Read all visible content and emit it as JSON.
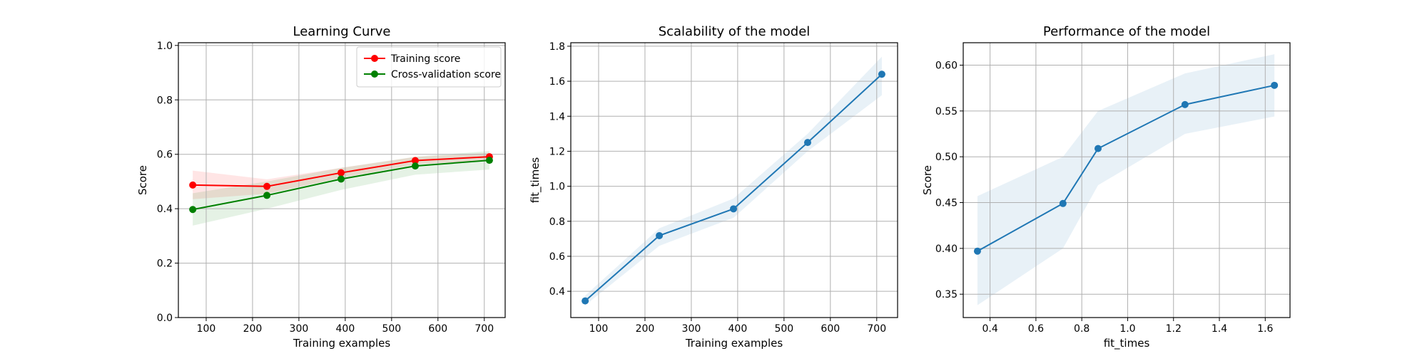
{
  "colors": {
    "training": "#ff0000",
    "cross_validation": "#008000",
    "series": "#1f77b4",
    "band_blue": "#1f77b4"
  },
  "chart_data": [
    {
      "id": "learning",
      "type": "line",
      "title": "Learning Curve",
      "xlabel": "Training examples",
      "ylabel": "Score",
      "xlim": [
        40,
        745
      ],
      "ylim": [
        0.0,
        1.01
      ],
      "xticks": [
        100,
        200,
        300,
        400,
        500,
        600,
        700
      ],
      "yticks": [
        0.0,
        0.2,
        0.4,
        0.6,
        0.8,
        1.0
      ],
      "xtick_labels": [
        "100",
        "200",
        "300",
        "400",
        "500",
        "600",
        "700"
      ],
      "ytick_labels": [
        "0.0",
        "0.2",
        "0.4",
        "0.6",
        "0.8",
        "1.0"
      ],
      "grid": true,
      "legend_position": "top-right",
      "series": [
        {
          "name": "Training score",
          "color": "#ff0000",
          "x": [
            71,
            231,
            391,
            551,
            711
          ],
          "y": [
            0.487,
            0.482,
            0.532,
            0.577,
            0.591
          ],
          "band_lower": [
            0.435,
            0.455,
            0.513,
            0.563,
            0.578
          ],
          "band_upper": [
            0.54,
            0.508,
            0.55,
            0.59,
            0.605
          ]
        },
        {
          "name": "Cross-validation score",
          "color": "#008000",
          "x": [
            71,
            231,
            391,
            551,
            711
          ],
          "y": [
            0.397,
            0.449,
            0.509,
            0.557,
            0.578
          ],
          "band_lower": [
            0.338,
            0.4,
            0.469,
            0.525,
            0.544
          ],
          "band_upper": [
            0.457,
            0.5,
            0.55,
            0.591,
            0.612
          ]
        }
      ]
    },
    {
      "id": "scalability",
      "type": "line",
      "title": "Scalability of the model",
      "xlabel": "Training examples",
      "ylabel": "fit_times",
      "xlim": [
        40,
        745
      ],
      "ylim": [
        0.25,
        1.82
      ],
      "xticks": [
        100,
        200,
        300,
        400,
        500,
        600,
        700
      ],
      "yticks": [
        0.4,
        0.6,
        0.8,
        1.0,
        1.2,
        1.4,
        1.6,
        1.8
      ],
      "xtick_labels": [
        "100",
        "200",
        "300",
        "400",
        "500",
        "600",
        "700"
      ],
      "ytick_labels": [
        "0.4",
        "0.6",
        "0.8",
        "1.0",
        "1.2",
        "1.4",
        "1.6",
        "1.8"
      ],
      "grid": true,
      "series": [
        {
          "color": "#1f77b4",
          "x": [
            71,
            231,
            391,
            551,
            711
          ],
          "y": [
            0.345,
            0.718,
            0.871,
            1.25,
            1.64
          ],
          "band_lower": [
            0.32,
            0.66,
            0.82,
            1.2,
            1.52
          ],
          "band_upper": [
            0.375,
            0.76,
            0.93,
            1.3,
            1.74
          ]
        }
      ]
    },
    {
      "id": "performance",
      "type": "line",
      "title": "Performance of the model",
      "xlabel": "fit_times",
      "ylabel": "Score",
      "xlim": [
        0.283,
        1.708
      ],
      "ylim": [
        0.3245,
        0.6245
      ],
      "xticks": [
        0.4,
        0.6,
        0.8,
        1.0,
        1.2,
        1.4,
        1.6
      ],
      "yticks": [
        0.35,
        0.4,
        0.45,
        0.5,
        0.55,
        0.6
      ],
      "xtick_labels": [
        "0.4",
        "0.6",
        "0.8",
        "1.0",
        "1.2",
        "1.4",
        "1.6"
      ],
      "ytick_labels": [
        "0.35",
        "0.40",
        "0.45",
        "0.50",
        "0.55",
        "0.60"
      ],
      "grid": true,
      "series": [
        {
          "color": "#1f77b4",
          "x": [
            0.345,
            0.718,
            0.871,
            1.25,
            1.64
          ],
          "y": [
            0.397,
            0.449,
            0.509,
            0.557,
            0.578
          ],
          "band_lower": [
            0.338,
            0.4,
            0.469,
            0.525,
            0.544
          ],
          "band_upper": [
            0.457,
            0.5,
            0.55,
            0.591,
            0.612
          ]
        }
      ]
    }
  ]
}
